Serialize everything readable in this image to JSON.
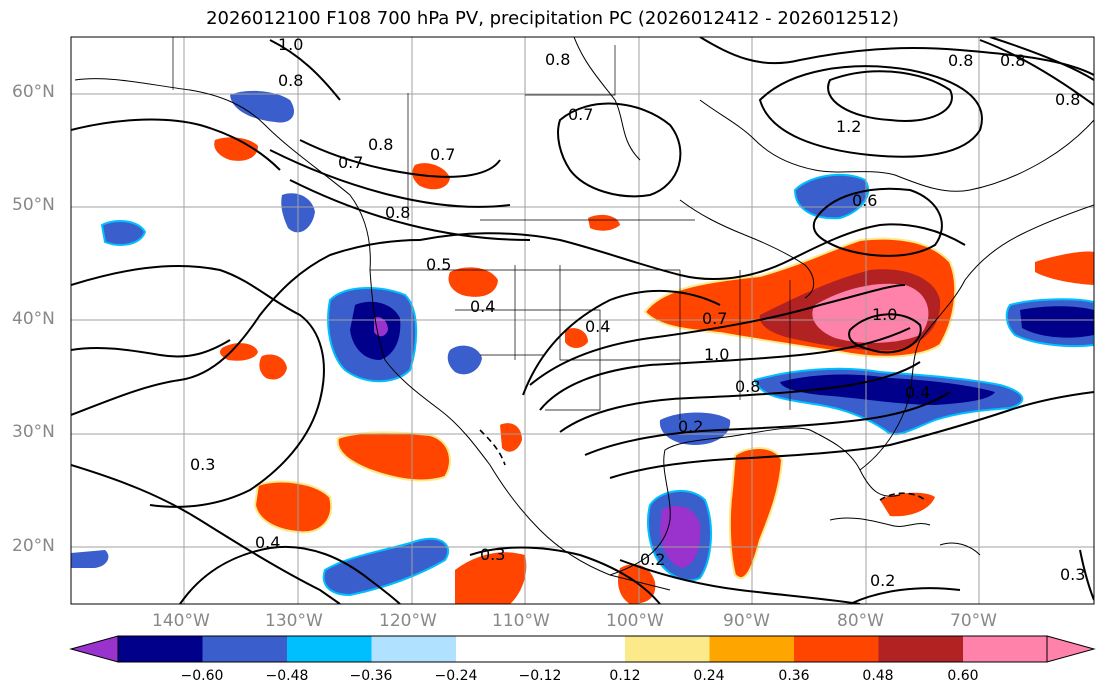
{
  "title": "2026012100 F108 700 hPa PV, precipitation PC (2026012412 - 2026012512)",
  "latitude_labels": [
    "60°N",
    "50°N",
    "40°N",
    "30°N",
    "20°N"
  ],
  "longitude_labels": [
    "140°W",
    "130°W",
    "120°W",
    "110°W",
    "100°W",
    "90°W",
    "80°W",
    "70°W"
  ],
  "contour_labels": [
    "1.0",
    "0.8",
    "0.8",
    "0.7",
    "0.7",
    "0.7",
    "0.8",
    "0.8",
    "0.8",
    "1.2",
    "0.6",
    "0.5",
    "0.4",
    "0.4",
    "1.0",
    "1.0",
    "0.8",
    "0.7",
    "0.4",
    "0.3",
    "0.4",
    "0.3",
    "0.2",
    "0.2",
    "0.2",
    "0.3",
    "0.8",
    "0.8"
  ],
  "colorbar": {
    "tick_labels": [
      "−0.60",
      "−0.48",
      "−0.36",
      "−0.24",
      "−0.12",
      "0.12",
      "0.24",
      "0.36",
      "0.48",
      "0.60"
    ],
    "colors": [
      "#9a32cd",
      "#00008b",
      "#3a5fcd",
      "#00bfff",
      "#b0e2ff",
      "#ffffff",
      "#fce98a",
      "#ffa500",
      "#ff4500",
      "#b22222",
      "#ff82ab"
    ]
  },
  "map_region": "North America and northeast Pacific, roughly 150°W–60°W, 15°N–65°N",
  "colors": {
    "positive_low": "#fce98a",
    "positive_mid": "#ffa500",
    "positive_high": "#ff4500",
    "positive_higher": "#b22222",
    "positive_max": "#ff82ab",
    "negative_low": "#b0e2ff",
    "negative_mid": "#00bfff",
    "negative_high": "#3a5fcd",
    "negative_higher": "#00008b",
    "negative_max": "#9a32cd"
  }
}
